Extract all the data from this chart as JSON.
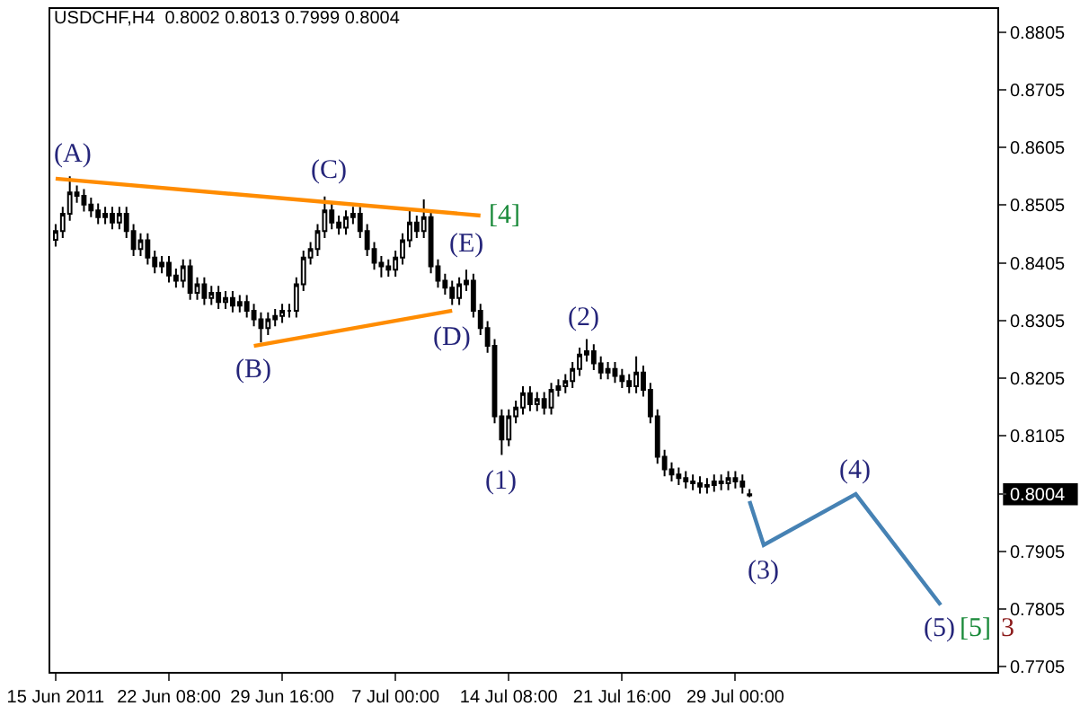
{
  "chart_data": {
    "type": "candlestick",
    "title": "USDCHF,H4  0.8002 0.8013 0.7999 0.8004",
    "categories": [
      "15 Jun 2011",
      null,
      null,
      null,
      null,
      null,
      null,
      null,
      null,
      null,
      null,
      null,
      null,
      null,
      null,
      null,
      "22 Jun 08:00",
      null,
      null,
      null,
      null,
      null,
      null,
      null,
      null,
      null,
      null,
      null,
      null,
      null,
      null,
      null,
      "29 Jun 16:00",
      null,
      null,
      null,
      null,
      null,
      null,
      null,
      null,
      null,
      null,
      null,
      null,
      null,
      null,
      null,
      "7 Jul 00:00",
      null,
      null,
      null,
      null,
      null,
      null,
      null,
      null,
      null,
      null,
      null,
      null,
      null,
      null,
      null,
      "14 Jul 08:00",
      null,
      null,
      null,
      null,
      null,
      null,
      null,
      null,
      null,
      null,
      null,
      null,
      null,
      null,
      null,
      "21 Jul 16:00",
      null,
      null,
      null,
      null,
      null,
      null,
      null,
      null,
      null,
      null,
      null,
      null,
      null,
      null,
      null,
      "29 Jul 00:00",
      null,
      null,
      null,
      null,
      null,
      null,
      null,
      null,
      null,
      null,
      null,
      null,
      null,
      null,
      null,
      null,
      null,
      null,
      null,
      null,
      null,
      null,
      null,
      null,
      null,
      null,
      null,
      null,
      null
    ],
    "ohlc": [
      [
        0.8445,
        0.8472,
        0.8433,
        0.846
      ],
      [
        0.846,
        0.8502,
        0.8448,
        0.849
      ],
      [
        0.849,
        0.8555,
        0.8478,
        0.8527
      ],
      [
        0.8527,
        0.8539,
        0.8509,
        0.8521
      ],
      [
        0.8521,
        0.8533,
        0.8494,
        0.8506
      ],
      [
        0.8506,
        0.8518,
        0.8484,
        0.8496
      ],
      [
        0.8496,
        0.8508,
        0.8472,
        0.8484
      ],
      [
        0.8484,
        0.8502,
        0.8472,
        0.849
      ],
      [
        0.849,
        0.8502,
        0.8463,
        0.8475
      ],
      [
        0.8475,
        0.8502,
        0.8463,
        0.849
      ],
      [
        0.849,
        0.8502,
        0.8448,
        0.846
      ],
      [
        0.846,
        0.8472,
        0.8417,
        0.8429
      ],
      [
        0.8429,
        0.8456,
        0.8417,
        0.8444
      ],
      [
        0.8444,
        0.8456,
        0.8402,
        0.8414
      ],
      [
        0.8414,
        0.8426,
        0.8387,
        0.8399
      ],
      [
        0.8399,
        0.8417,
        0.8387,
        0.8405
      ],
      [
        0.8405,
        0.8417,
        0.8371,
        0.8383
      ],
      [
        0.8383,
        0.8395,
        0.8362,
        0.8374
      ],
      [
        0.8374,
        0.8411,
        0.8362,
        0.8399
      ],
      [
        0.8399,
        0.8411,
        0.8341,
        0.8353
      ],
      [
        0.8353,
        0.838,
        0.8341,
        0.8368
      ],
      [
        0.8368,
        0.838,
        0.8332,
        0.8344
      ],
      [
        0.8344,
        0.8365,
        0.8332,
        0.8353
      ],
      [
        0.8353,
        0.8365,
        0.8325,
        0.8337
      ],
      [
        0.8337,
        0.8356,
        0.8325,
        0.8344
      ],
      [
        0.8344,
        0.8356,
        0.8319,
        0.8331
      ],
      [
        0.8331,
        0.8349,
        0.8319,
        0.8337
      ],
      [
        0.8337,
        0.8349,
        0.831,
        0.8322
      ],
      [
        0.8322,
        0.8334,
        0.8295,
        0.8307
      ],
      [
        0.8307,
        0.8319,
        0.8267,
        0.8292
      ],
      [
        0.8292,
        0.8319,
        0.828,
        0.8307
      ],
      [
        0.8307,
        0.8325,
        0.8295,
        0.8313
      ],
      [
        0.8313,
        0.8334,
        0.8301,
        0.8322
      ],
      [
        0.8322,
        0.8334,
        0.831,
        0.8322
      ],
      [
        0.8322,
        0.838,
        0.831,
        0.8368
      ],
      [
        0.8368,
        0.8426,
        0.8356,
        0.8414
      ],
      [
        0.8414,
        0.8441,
        0.8402,
        0.8429
      ],
      [
        0.8429,
        0.8472,
        0.8417,
        0.846
      ],
      [
        0.846,
        0.852,
        0.8448,
        0.8496
      ],
      [
        0.8496,
        0.8508,
        0.8463,
        0.8475
      ],
      [
        0.8475,
        0.8487,
        0.8454,
        0.8466
      ],
      [
        0.8466,
        0.8496,
        0.8454,
        0.8484
      ],
      [
        0.8484,
        0.8502,
        0.8472,
        0.849
      ],
      [
        0.849,
        0.8502,
        0.8448,
        0.846
      ],
      [
        0.846,
        0.8472,
        0.8417,
        0.8429
      ],
      [
        0.8429,
        0.8441,
        0.8393,
        0.8405
      ],
      [
        0.8405,
        0.8417,
        0.838,
        0.8399
      ],
      [
        0.8399,
        0.8411,
        0.8381,
        0.8393
      ],
      [
        0.8393,
        0.8426,
        0.8381,
        0.8414
      ],
      [
        0.8414,
        0.8456,
        0.8402,
        0.8444
      ],
      [
        0.8444,
        0.8496,
        0.8432,
        0.8475
      ],
      [
        0.8475,
        0.8487,
        0.8448,
        0.846
      ],
      [
        0.846,
        0.8515,
        0.8448,
        0.8484
      ],
      [
        0.8484,
        0.8496,
        0.8387,
        0.8399
      ],
      [
        0.8399,
        0.8411,
        0.8362,
        0.8374
      ],
      [
        0.8374,
        0.8386,
        0.835,
        0.8362
      ],
      [
        0.8362,
        0.8374,
        0.8332,
        0.8344
      ],
      [
        0.8344,
        0.838,
        0.8332,
        0.8368
      ],
      [
        0.8368,
        0.8393,
        0.8356,
        0.8374
      ],
      [
        0.8374,
        0.8386,
        0.831,
        0.8322
      ],
      [
        0.8322,
        0.8334,
        0.828,
        0.8292
      ],
      [
        0.8292,
        0.8304,
        0.8249,
        0.8261
      ],
      [
        0.8261,
        0.8273,
        0.8127,
        0.8139
      ],
      [
        0.8139,
        0.8151,
        0.8072,
        0.8099
      ],
      [
        0.8099,
        0.8151,
        0.8087,
        0.8139
      ],
      [
        0.8139,
        0.8166,
        0.8127,
        0.8154
      ],
      [
        0.8154,
        0.8191,
        0.8142,
        0.8179
      ],
      [
        0.8179,
        0.8191,
        0.8148,
        0.816
      ],
      [
        0.816,
        0.8181,
        0.8148,
        0.8169
      ],
      [
        0.8169,
        0.8181,
        0.8142,
        0.8154
      ],
      [
        0.8154,
        0.8197,
        0.8142,
        0.8185
      ],
      [
        0.8185,
        0.8203,
        0.8173,
        0.8191
      ],
      [
        0.8191,
        0.8212,
        0.8179,
        0.82
      ],
      [
        0.82,
        0.8233,
        0.8188,
        0.8221
      ],
      [
        0.8221,
        0.8258,
        0.8209,
        0.8246
      ],
      [
        0.8246,
        0.8273,
        0.8234,
        0.8252
      ],
      [
        0.8252,
        0.8264,
        0.8219,
        0.8231
      ],
      [
        0.8231,
        0.8243,
        0.8203,
        0.8215
      ],
      [
        0.8215,
        0.8233,
        0.8203,
        0.8221
      ],
      [
        0.8221,
        0.8233,
        0.8197,
        0.8209
      ],
      [
        0.8209,
        0.8221,
        0.8188,
        0.82
      ],
      [
        0.82,
        0.8212,
        0.8179,
        0.8191
      ],
      [
        0.8191,
        0.8243,
        0.8179,
        0.8215
      ],
      [
        0.8215,
        0.8227,
        0.8173,
        0.8185
      ],
      [
        0.8185,
        0.8197,
        0.8127,
        0.8139
      ],
      [
        0.8139,
        0.8151,
        0.8057,
        0.8069
      ],
      [
        0.8069,
        0.8081,
        0.8035,
        0.8047
      ],
      [
        0.8047,
        0.8059,
        0.8026,
        0.8038
      ],
      [
        0.8038,
        0.805,
        0.802,
        0.8032
      ],
      [
        0.8032,
        0.8044,
        0.8014,
        0.8026
      ],
      [
        0.8026,
        0.8038,
        0.8011,
        0.8023
      ],
      [
        0.8023,
        0.8035,
        0.8005,
        0.8017
      ],
      [
        0.8017,
        0.8032,
        0.8005,
        0.802
      ],
      [
        0.802,
        0.8038,
        0.8008,
        0.8026
      ],
      [
        0.8026,
        0.8038,
        0.8011,
        0.8023
      ],
      [
        0.8023,
        0.8044,
        0.8011,
        0.8032
      ],
      [
        0.8032,
        0.8044,
        0.8014,
        0.8026
      ],
      [
        0.8026,
        0.8038,
        0.8005,
        0.8017
      ],
      [
        0.8002,
        0.8013,
        0.7999,
        0.8004
      ],
      null,
      null,
      null,
      null,
      null,
      null,
      null,
      null,
      null,
      null,
      null,
      null,
      null,
      null,
      null,
      null,
      null,
      null,
      null,
      null,
      null,
      null,
      null,
      null,
      null,
      null,
      null
    ],
    "series": [
      {
        "type": "line",
        "color": "#ff8c00",
        "values": [
          0.8551,
          null,
          null,
          null,
          null,
          null,
          null,
          null,
          null,
          null,
          null,
          null,
          null,
          null,
          null,
          null,
          null,
          null,
          null,
          null,
          null,
          null,
          null,
          null,
          null,
          null,
          null,
          null,
          null,
          null,
          null,
          null,
          null,
          null,
          null,
          null,
          null,
          null,
          null,
          null,
          null,
          null,
          null,
          null,
          null,
          null,
          null,
          null,
          null,
          null,
          null,
          null,
          null,
          null,
          null,
          null,
          null,
          null,
          null,
          null,
          0.8487,
          null,
          null,
          null,
          null,
          null,
          null,
          null,
          null,
          null,
          null,
          null,
          null,
          null,
          null,
          null,
          null,
          null,
          null,
          null,
          null,
          null,
          null,
          null,
          null,
          null,
          null,
          null,
          null,
          null,
          null,
          null,
          null,
          null,
          null,
          null,
          null,
          null,
          null,
          null,
          null,
          null,
          null,
          null,
          null,
          null,
          null,
          null,
          null,
          null,
          null,
          null,
          null,
          null,
          null,
          null,
          null,
          null,
          null,
          null,
          null,
          null,
          null,
          null,
          null,
          null
        ]
      },
      {
        "type": "line",
        "color": "#ff8c00",
        "values": [
          null,
          null,
          null,
          null,
          null,
          null,
          null,
          null,
          null,
          null,
          null,
          null,
          null,
          null,
          null,
          null,
          null,
          null,
          null,
          null,
          null,
          null,
          null,
          null,
          null,
          null,
          null,
          null,
          0.8261,
          null,
          null,
          null,
          null,
          null,
          null,
          null,
          null,
          null,
          null,
          null,
          null,
          null,
          null,
          null,
          null,
          null,
          null,
          null,
          null,
          null,
          null,
          null,
          null,
          null,
          null,
          null,
          0.8322,
          null,
          null,
          null,
          null,
          null,
          null,
          null,
          null,
          null,
          null,
          null,
          null,
          null,
          null,
          null,
          null,
          null,
          null,
          null,
          null,
          null,
          null,
          null,
          null,
          null,
          null,
          null,
          null,
          null,
          null,
          null,
          null,
          null,
          null,
          null,
          null,
          null,
          null,
          null,
          null,
          null,
          null,
          null,
          null,
          null,
          null,
          null,
          null,
          null,
          null,
          null,
          null,
          null,
          null,
          null,
          null,
          null,
          null,
          null,
          null,
          null,
          null,
          null,
          null,
          null,
          null,
          null,
          null,
          null
        ]
      },
      {
        "type": "line",
        "color": "#4682b4",
        "values": [
          null,
          null,
          null,
          null,
          null,
          null,
          null,
          null,
          null,
          null,
          null,
          null,
          null,
          null,
          null,
          null,
          null,
          null,
          null,
          null,
          null,
          null,
          null,
          null,
          null,
          null,
          null,
          null,
          null,
          null,
          null,
          null,
          null,
          null,
          null,
          null,
          null,
          null,
          null,
          null,
          null,
          null,
          null,
          null,
          null,
          null,
          null,
          null,
          null,
          null,
          null,
          null,
          null,
          null,
          null,
          null,
          null,
          null,
          null,
          null,
          null,
          null,
          null,
          null,
          null,
          null,
          null,
          null,
          null,
          null,
          null,
          null,
          null,
          null,
          null,
          null,
          null,
          null,
          null,
          null,
          null,
          null,
          null,
          null,
          null,
          null,
          null,
          null,
          null,
          null,
          null,
          null,
          null,
          null,
          null,
          null,
          null,
          null,
          0.7992,
          null,
          0.7916,
          null,
          null,
          null,
          null,
          null,
          null,
          null,
          null,
          null,
          null,
          null,
          null,
          0.8004,
          null,
          null,
          null,
          null,
          null,
          null,
          null,
          null,
          null,
          null,
          null,
          0.7812
        ]
      }
    ],
    "annotations": [
      {
        "text": "(A)",
        "y": 0.8555
      },
      {
        "text": "(B)",
        "y": 0.8267
      },
      {
        "text": "(C)",
        "y": 0.852
      },
      {
        "text": "(D)",
        "y": 0.8322
      },
      {
        "text": "(E)",
        "y": 0.8393
      },
      "[4]",
      {
        "text": "(1)",
        "y": 0.8072
      },
      {
        "text": "(2)",
        "y": 0.8273
      },
      {
        "text": "(3)",
        "y": 0.7916
      },
      {
        "text": "(4)",
        "y": 0.8004
      },
      {
        "text": "(5)",
        "y": 0.7812
      },
      "[5]",
      "3"
    ],
    "ylim": [
      0.7696,
      0.8845
    ],
    "yticks": [
      0.7705,
      0.7805,
      0.7905,
      {
        "value": 0.8004,
        "label": "0.8004"
      },
      0.8105,
      0.8205,
      0.8305,
      0.8405,
      0.8505,
      0.8605,
      0.8705,
      0.8805
    ],
    "tick_labels": true
  }
}
